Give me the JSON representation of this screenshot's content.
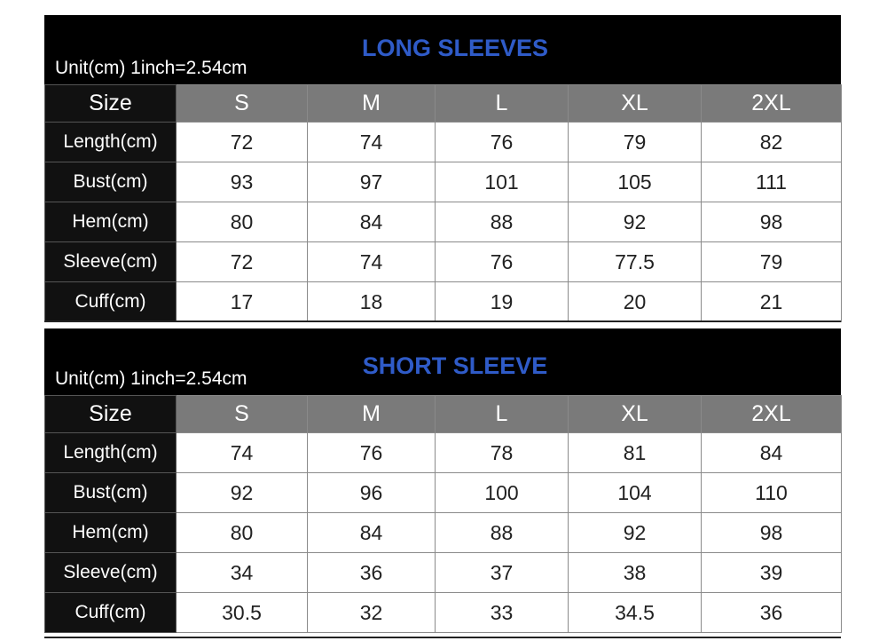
{
  "colors": {
    "title": "#2f5bc8",
    "banner": "#000000",
    "header_row": "#7a7a7a",
    "label_col": "#111111"
  },
  "charts": [
    {
      "title": "LONG SLEEVES",
      "unit_note": "Unit(cm)  1inch=2.54cm",
      "corner_label": "Size",
      "sizes": [
        "S",
        "M",
        "L",
        "XL",
        "2XL"
      ],
      "rows": [
        {
          "label": "Length(cm)",
          "values": [
            "72",
            "74",
            "76",
            "79",
            "82"
          ]
        },
        {
          "label": "Bust(cm)",
          "values": [
            "93",
            "97",
            "101",
            "105",
            "111"
          ]
        },
        {
          "label": "Hem(cm)",
          "values": [
            "80",
            "84",
            "88",
            "92",
            "98"
          ]
        },
        {
          "label": "Sleeve(cm)",
          "values": [
            "72",
            "74",
            "76",
            "77.5",
            "79"
          ]
        },
        {
          "label": "Cuff(cm)",
          "values": [
            "17",
            "18",
            "19",
            "20",
            "21"
          ]
        }
      ]
    },
    {
      "title": "SHORT SLEEVE",
      "unit_note": "Unit(cm)  1inch=2.54cm",
      "corner_label": "Size",
      "sizes": [
        "S",
        "M",
        "L",
        "XL",
        "2XL"
      ],
      "rows": [
        {
          "label": "Length(cm)",
          "values": [
            "74",
            "76",
            "78",
            "81",
            "84"
          ]
        },
        {
          "label": "Bust(cm)",
          "values": [
            "92",
            "96",
            "100",
            "104",
            "110"
          ]
        },
        {
          "label": "Hem(cm)",
          "values": [
            "80",
            "84",
            "88",
            "92",
            "98"
          ]
        },
        {
          "label": "Sleeve(cm)",
          "values": [
            "34",
            "36",
            "37",
            "38",
            "39"
          ]
        },
        {
          "label": "Cuff(cm)",
          "values": [
            "30.5",
            "32",
            "33",
            "34.5",
            "36"
          ]
        }
      ]
    }
  ]
}
